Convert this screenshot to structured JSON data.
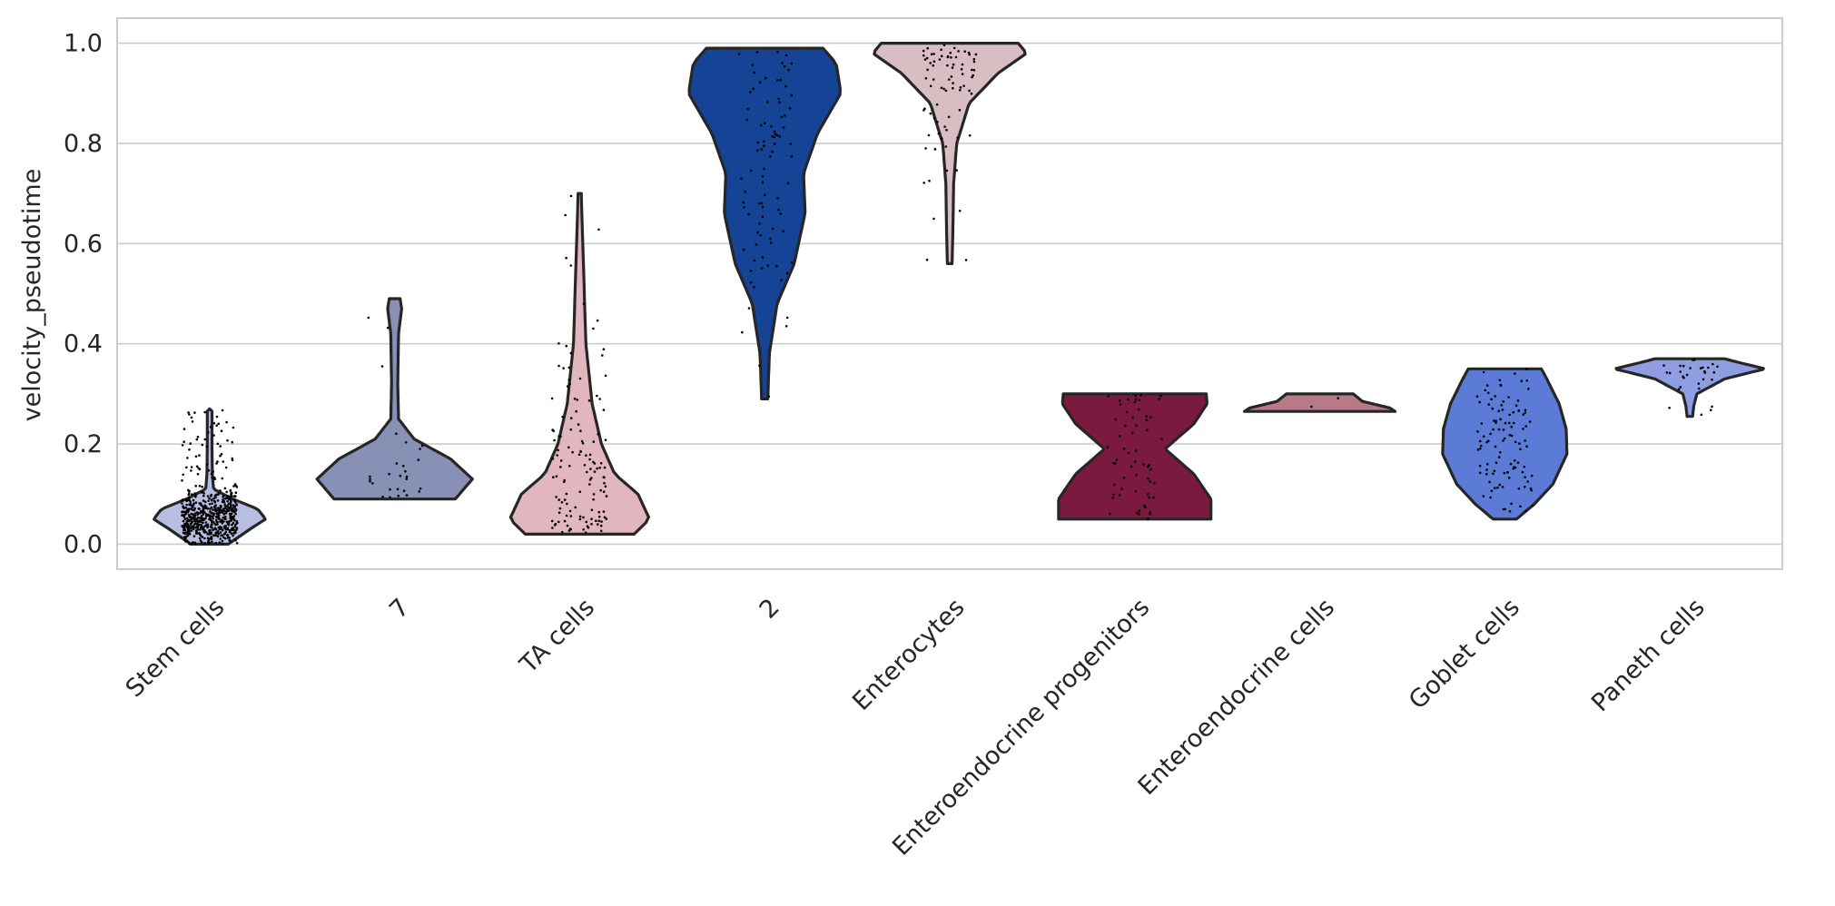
{
  "chart_data": {
    "type": "violin",
    "title": "",
    "xlabel": "",
    "ylabel": "velocity_pseudotime",
    "ylim": [
      -0.05,
      1.05
    ],
    "yticks": [
      "0.0",
      "0.2",
      "0.4",
      "0.6",
      "0.8",
      "1.0"
    ],
    "grid": "horizontal",
    "categories": [
      "Stem cells",
      "7",
      "TA cells",
      "2",
      "Enterocytes",
      "Enteroendocrine progenitors",
      "Enteroendocrine cells",
      "Goblet cells",
      "Paneth cells"
    ],
    "series": [
      {
        "category": "Stem cells",
        "color": "#b8bde2",
        "min": 0.0,
        "max": 0.27,
        "points": 600,
        "density": [
          [
            0.0,
            0.24
          ],
          [
            0.03,
            0.52
          ],
          [
            0.05,
            0.72
          ],
          [
            0.07,
            0.62
          ],
          [
            0.09,
            0.3
          ],
          [
            0.11,
            0.05
          ],
          [
            0.14,
            0.035
          ],
          [
            0.2,
            0.03
          ],
          [
            0.27,
            0.03
          ]
        ]
      },
      {
        "category": "7",
        "color": "#8890b6",
        "min": 0.09,
        "max": 0.49,
        "points": 28,
        "density": [
          [
            0.09,
            0.78
          ],
          [
            0.13,
            1.0
          ],
          [
            0.17,
            0.72
          ],
          [
            0.21,
            0.25
          ],
          [
            0.25,
            0.05
          ],
          [
            0.32,
            0.04
          ],
          [
            0.42,
            0.05
          ],
          [
            0.47,
            0.09
          ],
          [
            0.49,
            0.07
          ]
        ]
      },
      {
        "category": "TA cells",
        "color": "#e1b6be",
        "min": 0.02,
        "max": 0.7,
        "points": 130,
        "density": [
          [
            0.02,
            0.7
          ],
          [
            0.05,
            0.9
          ],
          [
            0.1,
            0.75
          ],
          [
            0.14,
            0.45
          ],
          [
            0.2,
            0.28
          ],
          [
            0.28,
            0.16
          ],
          [
            0.4,
            0.08
          ],
          [
            0.55,
            0.05
          ],
          [
            0.7,
            0.02
          ]
        ]
      },
      {
        "category": "2",
        "color": "#154396",
        "min": 0.29,
        "max": 0.99,
        "points": 90,
        "density": [
          [
            0.29,
            0.04
          ],
          [
            0.38,
            0.06
          ],
          [
            0.48,
            0.16
          ],
          [
            0.56,
            0.38
          ],
          [
            0.66,
            0.52
          ],
          [
            0.74,
            0.5
          ],
          [
            0.82,
            0.68
          ],
          [
            0.9,
            0.98
          ],
          [
            0.96,
            0.92
          ],
          [
            0.99,
            0.75
          ]
        ]
      },
      {
        "category": "Enterocytes",
        "color": "#d8bdc2",
        "min": 0.56,
        "max": 1.0,
        "points": 80,
        "density": [
          [
            0.56,
            0.03
          ],
          [
            0.62,
            0.04
          ],
          [
            0.72,
            0.05
          ],
          [
            0.8,
            0.09
          ],
          [
            0.88,
            0.25
          ],
          [
            0.94,
            0.62
          ],
          [
            0.98,
            0.99
          ],
          [
            1.0,
            0.88
          ]
        ]
      },
      {
        "category": "Enteroendocrine progenitors",
        "color": "#7a1a3e",
        "min": 0.05,
        "max": 0.3,
        "points": 60,
        "density": [
          [
            0.05,
            0.98
          ],
          [
            0.09,
            0.98
          ],
          [
            0.14,
            0.76
          ],
          [
            0.19,
            0.39
          ],
          [
            0.24,
            0.76
          ],
          [
            0.28,
            0.93
          ],
          [
            0.3,
            0.92
          ]
        ]
      },
      {
        "category": "Enteroendocrine cells",
        "color": "#b67b86",
        "min": 0.265,
        "max": 0.3,
        "points": 2,
        "density": [
          [
            0.265,
            0.97
          ],
          [
            0.272,
            0.9
          ],
          [
            0.285,
            0.55
          ],
          [
            0.3,
            0.43
          ]
        ]
      },
      {
        "category": "Goblet cells",
        "color": "#5b7bd6",
        "min": 0.05,
        "max": 0.35,
        "points": 110,
        "density": [
          [
            0.05,
            0.15
          ],
          [
            0.08,
            0.38
          ],
          [
            0.12,
            0.62
          ],
          [
            0.18,
            0.8
          ],
          [
            0.23,
            0.79
          ],
          [
            0.28,
            0.7
          ],
          [
            0.33,
            0.54
          ],
          [
            0.35,
            0.47
          ]
        ]
      },
      {
        "category": "Paneth cells",
        "color": "#8f9ee2",
        "min": 0.255,
        "max": 0.37,
        "points": 30,
        "density": [
          [
            0.255,
            0.035
          ],
          [
            0.275,
            0.05
          ],
          [
            0.3,
            0.09
          ],
          [
            0.33,
            0.45
          ],
          [
            0.35,
            0.97
          ],
          [
            0.36,
            0.7
          ],
          [
            0.37,
            0.45
          ]
        ]
      }
    ]
  }
}
